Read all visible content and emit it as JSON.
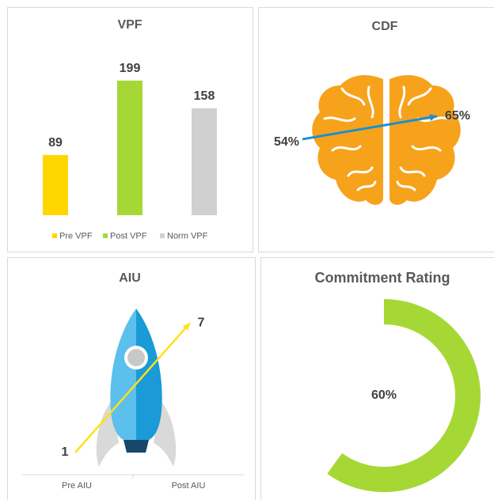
{
  "chart_data": [
    {
      "type": "bar",
      "title": "VPF",
      "categories": [
        "Pre VPF",
        "Post VPF",
        "Norm VPF"
      ],
      "values": [
        89,
        199,
        158
      ],
      "colors": [
        "#ffd600",
        "#a6d835",
        "#d0d0d0"
      ],
      "legend": "bottom"
    },
    {
      "type": "change",
      "title": "CDF",
      "values": [
        54,
        65
      ],
      "value_labels": [
        "54%",
        "65%"
      ],
      "color": "#1a8fd0"
    },
    {
      "type": "change",
      "title": "AIU",
      "categories": [
        "Pre AIU",
        "Post AIU"
      ],
      "values": [
        1,
        7
      ],
      "color": "#ffe11a"
    },
    {
      "type": "donut",
      "title": "Commitment Rating",
      "values": [
        60
      ],
      "value_labels": [
        "60%"
      ],
      "color": "#a6d835"
    }
  ]
}
